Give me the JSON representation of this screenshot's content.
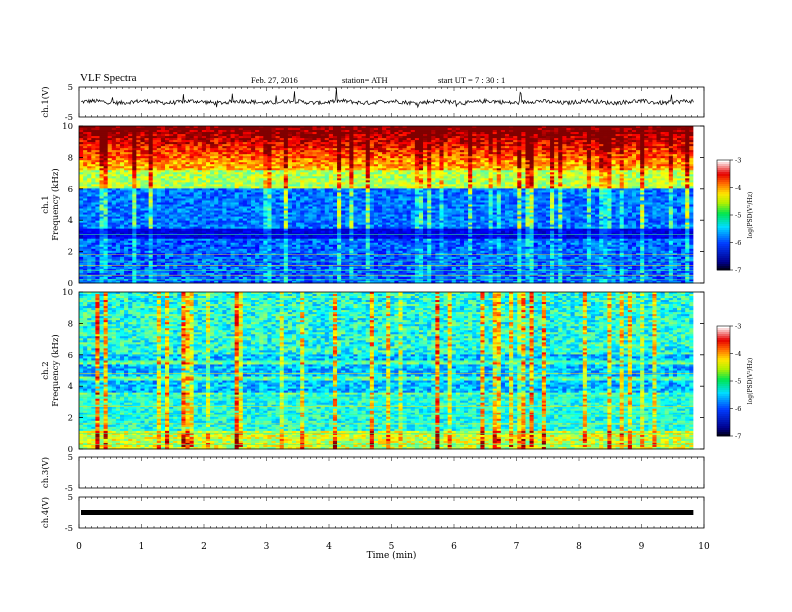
{
  "header": {
    "title": "VLF  Spectra",
    "date": "Feb. 27, 2016",
    "station": "station= ATH",
    "start_ut": "start  UT  =   7  : 30 : 1"
  },
  "chart_data": [
    {
      "type": "line",
      "panel": "ch1-waveform",
      "ylabel": "ch.1(V)",
      "yticks": [
        "5",
        "-5"
      ],
      "ylim": [
        -5,
        5
      ],
      "description_values": {
        "baseline": 0.0
      }
    },
    {
      "type": "heatmap",
      "panel": "ch1-spectrogram",
      "ylabel": "ch.1\nFrequency  (kHz)",
      "yticks": [
        "0",
        "2",
        "4",
        "6",
        "8",
        "10"
      ],
      "ylim": [
        0,
        10
      ],
      "colorbar": {
        "label": "log(PSD(V²/Hz)",
        "ticks": [
          "-3",
          "-4",
          "-5",
          "-6",
          "-7"
        ],
        "range": [
          -7,
          -3
        ]
      }
    },
    {
      "type": "heatmap",
      "panel": "ch2-spectrogram",
      "ylabel": "ch.2\nFrequency  (kHz)",
      "yticks": [
        "0",
        "2",
        "4",
        "6",
        "8",
        "10"
      ],
      "ylim": [
        0,
        10
      ],
      "colorbar": {
        "label": "log(PSD(V²/Hz)",
        "ticks": [
          "-3",
          "-4",
          "-5",
          "-6",
          "-7"
        ],
        "range": [
          -7,
          -3
        ]
      }
    },
    {
      "type": "line",
      "panel": "ch3-waveform",
      "ylabel": "ch.3(V)",
      "yticks": [
        "5",
        "-5"
      ],
      "ylim": [
        -5,
        5
      ]
    },
    {
      "type": "line",
      "panel": "ch4-waveform",
      "ylabel": "ch.4(V)",
      "yticks": [
        "5",
        "-5"
      ],
      "ylim": [
        -5,
        5
      ],
      "description_values": {
        "baseline": 0.0
      }
    }
  ],
  "xaxis": {
    "label": "Time  (min)",
    "ticks": [
      "0",
      "1",
      "2",
      "3",
      "4",
      "5",
      "6",
      "7",
      "8",
      "9",
      "10"
    ],
    "xlim": [
      0,
      10
    ],
    "data_end_min": 9.83
  }
}
